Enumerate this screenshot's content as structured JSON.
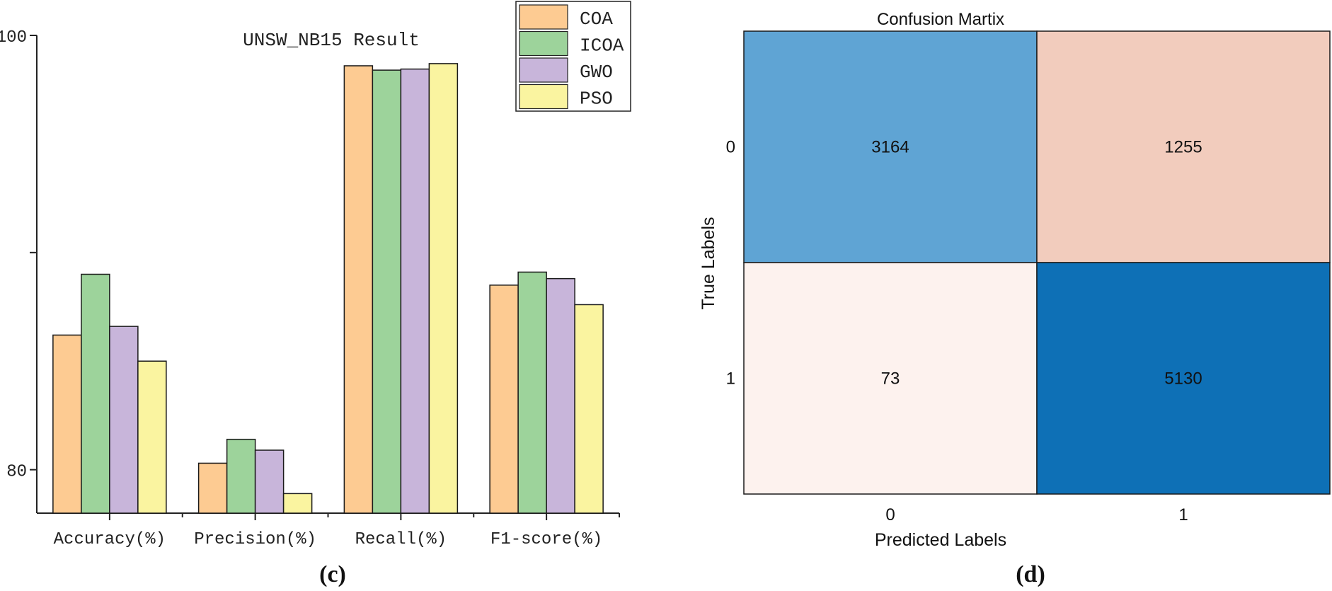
{
  "chart_data": [
    {
      "type": "bar",
      "title": "UNSW_NB15 Result",
      "panel_label": "(c)",
      "categories": [
        "Accuracy(%)",
        "Precision(%)",
        "Recall(%)",
        "F1-score(%)"
      ],
      "series": [
        {
          "name": "COA",
          "color": "#FDCB92",
          "values": [
            86.2,
            80.3,
            98.6,
            88.5
          ]
        },
        {
          "name": "ICOA",
          "color": "#9DD39B",
          "values": [
            89.0,
            81.4,
            98.4,
            89.1
          ]
        },
        {
          "name": "GWO",
          "color": "#C8B5DA",
          "values": [
            86.6,
            80.9,
            98.45,
            88.8
          ]
        },
        {
          "name": "PSO",
          "color": "#FAF4A0",
          "values": [
            85.0,
            78.9,
            98.7,
            87.6
          ]
        }
      ],
      "ylim": [
        78.0,
        100.0
      ],
      "yticks": [
        80,
        90,
        100
      ],
      "ytick_labels": [
        "80",
        "",
        "100"
      ],
      "xlabel": "",
      "ylabel": "",
      "legend_position": "top-right",
      "grid": false
    },
    {
      "type": "heatmap",
      "title": "Confusion Martix",
      "panel_label": "(d)",
      "xlabel": "Predicted Labels",
      "ylabel": "True Labels",
      "x_categories": [
        "0",
        "1"
      ],
      "y_categories": [
        "0",
        "1"
      ],
      "values": [
        [
          3164,
          1255
        ],
        [
          73,
          5130
        ]
      ],
      "cell_colors": [
        [
          "#5FA4D4",
          "#F2CCBD"
        ],
        [
          "#FDF2EE",
          "#0E70B6"
        ]
      ]
    }
  ]
}
